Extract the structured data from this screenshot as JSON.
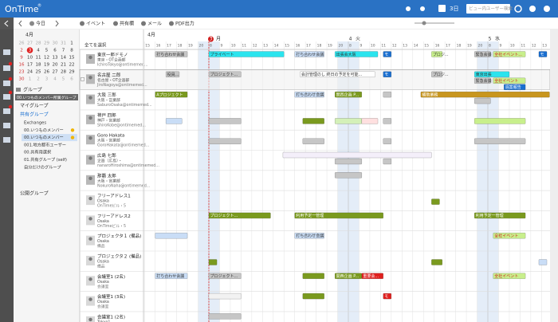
{
  "header": {
    "logo": "OnTime",
    "registered": "®",
    "range": "3日",
    "search_placeholder": "ビュー内ユーザー検索"
  },
  "toolbar": {
    "today": "今日",
    "buttons": [
      "イベント",
      "共有欄",
      "メール",
      "PDF出力"
    ]
  },
  "mini_calendar": {
    "month": "4月",
    "today": 3,
    "weeks": [
      [
        26,
        27,
        28,
        29,
        30,
        31,
        1
      ],
      [
        2,
        3,
        4,
        5,
        6,
        7,
        8
      ],
      [
        9,
        10,
        11,
        12,
        13,
        14,
        15
      ],
      [
        16,
        17,
        18,
        19,
        20,
        21,
        22
      ],
      [
        23,
        24,
        25,
        26,
        27,
        28,
        29
      ],
      [
        30,
        1,
        2,
        3,
        4,
        5,
        6
      ]
    ]
  },
  "groups": {
    "title": "グループ",
    "current": "00.いつものメンバー所属グループ",
    "my": "マイグループ",
    "shared": "共有グループ",
    "shared_items": [
      "Exchanges",
      "00.いつものメンバー",
      "00.いつものメンバー",
      "001.地方都市ユーザー",
      "00.共有用選択",
      "01.共有グループ (self)",
      "自分だけのグループ"
    ],
    "selected": 2,
    "public": "公開グループ"
  },
  "timeline": {
    "month": "4月",
    "days": [
      {
        "date": "3",
        "weekday": "月"
      },
      {
        "date": "4",
        "weekday": "火"
      },
      {
        "date": "5",
        "weekday": "水"
      }
    ],
    "hour_labels": [
      8,
      9,
      10,
      11,
      12,
      13,
      14,
      15,
      16,
      17,
      18,
      19,
      20
    ],
    "now": 8
  },
  "users": {
    "select_all": "全てを選択",
    "selected": 1,
    "rows": [
      {
        "name": "東京一郎ドモノ",
        "line1": "東京・OT企画部",
        "line2": "IchiroTokyo@ontimemed..."
      },
      {
        "name": "名古屋 二郎",
        "line1": "名古屋・OT企画部",
        "line2": "JiroNagoya@ontimemed..."
      },
      {
        "name": "大阪 三郎",
        "line1": "大阪・営業部",
        "line2": "SaburoOsaka@ontimemed..."
      },
      {
        "name": "神戸 四郎",
        "line1": "神戸・営業部",
        "line2": "ShiroKobe@ontimemed..."
      },
      {
        "name": "Goro Hakata",
        "line1": "大阪・営業部",
        "line2": "GoroHakata@ontimemed..."
      },
      {
        "name": "広島 七郎",
        "line1": "企画（広島）・",
        "line2": "nanaroHiroshima@ontimemed..."
      },
      {
        "name": "那覇 太郎",
        "line1": "大阪・営業部",
        "line2": "NokuroNaha@ontimemed..."
      },
      {
        "name": "フリーアドレス1",
        "line1": "Osaka",
        "line2": "OnTimeビル・5"
      },
      {
        "name": "フリーアドレス2",
        "line1": "Osaka",
        "line2": "OnTimeビル・5"
      },
      {
        "name": "プロジェクタ１ (備品)",
        "line1": "Osaka",
        "line2": "備品"
      },
      {
        "name": "プロジェクタ２ (備品)",
        "line1": "Osaka",
        "line2": "備品"
      },
      {
        "name": "会議室1 (2名)",
        "line1": "Osaka",
        "line2": "会議室"
      },
      {
        "name": "会議室1 (3名)",
        "line1": "Osaka",
        "line2": "会議室"
      },
      {
        "name": "会議室1 (2名)",
        "line1": "Tokyo1",
        "line2": "会議室"
      }
    ]
  },
  "events": [
    {
      "row": 0,
      "lane": 0,
      "start": -8,
      "end": -5,
      "label": "打ち合わせ会議",
      "color": "#c6c6c6"
    },
    {
      "row": 0,
      "lane": 0,
      "start": 8,
      "end": 15,
      "label": "プライベート",
      "color": "#2ae4ee"
    },
    {
      "row": 0,
      "lane": 0,
      "start": 16,
      "end": 18.75,
      "label": "打ち合わせ会議",
      "color": "#c9ddf6"
    },
    {
      "row": 0,
      "lane": 0,
      "start": 19.75,
      "end": 34.75,
      "label": "出張会大阪",
      "color": "#2ae4ee"
    },
    {
      "row": 0,
      "lane": 0,
      "start": 35.25,
      "end": 36,
      "label": "モ",
      "color": "#1a6fd0",
      "text_color": "#fff"
    },
    {
      "row": 0,
      "lane": 0,
      "start": 39.75,
      "end": 40.75,
      "label": "プロジ...",
      "color": "#c8ef8c"
    },
    {
      "row": 0,
      "lane": 0,
      "start": 43.75,
      "end": 56.25,
      "label": "緊急会議",
      "color": "#c6c6c6"
    },
    {
      "row": 0,
      "lane": 0,
      "start": 56.5,
      "end": 59.5,
      "label": "全社イベント...",
      "color": "#c8ef8c",
      "text_color": "#d02020"
    },
    {
      "row": 0,
      "lane": 0,
      "start": 60.75,
      "end": 61.5,
      "label": "モ",
      "color": "#1a6fd0",
      "text_color": "#fff"
    },
    {
      "row": 1,
      "lane": 0,
      "start": -7,
      "end": -5.75,
      "label": "役員...",
      "color": "#c6c6c6"
    },
    {
      "row": 1,
      "lane": 0,
      "start": 8,
      "end": 11,
      "label": "プロジェクト...",
      "color": "#c6c6c6"
    },
    {
      "row": 1,
      "lane": 0,
      "start": 16.5,
      "end": 34.5,
      "label": "会計管理のし 終日の予定を可能...",
      "color": "#ffffff"
    },
    {
      "row": 1,
      "lane": 0,
      "start": 35.25,
      "end": 36,
      "label": "モ",
      "color": "#1a6fd0",
      "text_color": "#fff"
    },
    {
      "row": 1,
      "lane": 0,
      "start": 39.75,
      "end": 40.75,
      "label": "プロジ...",
      "color": "#c6c6c6"
    },
    {
      "row": 1,
      "lane": 0,
      "start": 43.75,
      "end": 58,
      "label": "東京出張",
      "color": "#2ae4ee"
    },
    {
      "row": 1,
      "lane": 1,
      "start": 43.75,
      "end": 56.25,
      "label": "緊急会議",
      "color": "#c6c6c6"
    },
    {
      "row": 1,
      "lane": 1,
      "start": 56.5,
      "end": 59.5,
      "label": "全社イベント",
      "color": "#c8ef8c",
      "text_color": "#d02020"
    },
    {
      "row": 1,
      "lane": 2,
      "start": 57.5,
      "end": 59.5,
      "label": "週案報告",
      "color": "#1a6fd0",
      "text_color": "#fff"
    },
    {
      "row": 2,
      "lane": 0,
      "start": -8,
      "end": -5,
      "label": "Aプロジェクト",
      "color": "#7a9a1e",
      "text_color": "#fff"
    },
    {
      "row": 2,
      "lane": 0,
      "start": 16,
      "end": 18.75,
      "label": "打ち合わせ会議",
      "color": "#c9ddf6"
    },
    {
      "row": 2,
      "lane": 0,
      "start": 19.75,
      "end": 33.25,
      "label": "関西企画 P...",
      "color": "#7a9a1e",
      "text_color": "#fff"
    },
    {
      "row": 2,
      "lane": 0,
      "start": 35.25,
      "end": 36,
      "color": "#c6c6c6"
    },
    {
      "row": 2,
      "lane": 0,
      "start": 38.75,
      "end": 61.75,
      "label": "補助業務",
      "color": "#c8961e",
      "text_color": "#fff"
    },
    {
      "row": 2,
      "lane": 1,
      "start": 43.75,
      "end": 56.25,
      "color": "#c6c6c6"
    },
    {
      "row": 3,
      "lane": 1,
      "start": -7,
      "end": -5.5,
      "color": "#c9ddf6"
    },
    {
      "row": 3,
      "lane": 1,
      "start": 8,
      "end": 11,
      "color": "#c6c6c6"
    },
    {
      "row": 3,
      "lane": 1,
      "start": 16.75,
      "end": 18.75,
      "color": "#7a9a1e"
    },
    {
      "row": 3,
      "lane": 1,
      "start": 19.75,
      "end": 33.25,
      "color": "#d4f0b8"
    },
    {
      "row": 3,
      "lane": 1,
      "start": 33.25,
      "end": 34.75,
      "color": "#ffe0e0"
    },
    {
      "row": 3,
      "lane": 1,
      "start": 35.25,
      "end": 36,
      "color": "#c6c6c6"
    },
    {
      "row": 3,
      "lane": 1,
      "start": 43.75,
      "end": 59.5,
      "color": "#c8ef8c"
    },
    {
      "row": 4,
      "lane": 1,
      "start": 8,
      "end": 11,
      "color": "#c6c6c6"
    },
    {
      "row": 4,
      "lane": 1,
      "start": 16.75,
      "end": 18.75,
      "color": "#c6c6c6"
    },
    {
      "row": 4,
      "lane": 1,
      "start": 35.25,
      "end": 36,
      "color": "#c6c6c6"
    },
    {
      "row": 4,
      "lane": 1,
      "start": 43.75,
      "end": 59.5,
      "color": "#c6c6c6"
    },
    {
      "row": 5,
      "lane": 0,
      "start": 14.9,
      "end": 39.75,
      "color": "#f4effa"
    },
    {
      "row": 5,
      "lane": 1,
      "start": 19.75,
      "end": 33.25,
      "color": "#c6c6c6"
    },
    {
      "row": 5,
      "lane": 1,
      "start": 35.25,
      "end": 36,
      "color": "#c6c6c6"
    },
    {
      "row": 6,
      "lane": 0,
      "start": 19.75,
      "end": 33.25,
      "color": "#c6c6c6"
    },
    {
      "row": 7,
      "lane": 1,
      "start": 39.75,
      "end": 40.5,
      "color": "#7a9a1e"
    },
    {
      "row": 8,
      "lane": 0,
      "start": 8,
      "end": 13.75,
      "label": "プロジェクト...",
      "color": "#7a9a1e",
      "text_color": "#fff"
    },
    {
      "row": 8,
      "lane": 0,
      "start": 16,
      "end": 35.25,
      "label": "利用予定一管理",
      "color": "#7a9a1e",
      "text_color": "#fff"
    },
    {
      "row": 8,
      "lane": 0,
      "start": 43.75,
      "end": 59.5,
      "label": "利用予定一管理",
      "color": "#7a9a1e",
      "text_color": "#fff"
    },
    {
      "row": 9,
      "lane": 0,
      "start": -8,
      "end": -5,
      "color": "#c9ddf6"
    },
    {
      "row": 9,
      "lane": 0,
      "start": 16,
      "end": 18.75,
      "label": "打ち合わせ会議",
      "color": "#c9ddf6"
    },
    {
      "row": 9,
      "lane": 0,
      "start": 56.5,
      "end": 59.5,
      "label": "全社イベント",
      "color": "#c8ef8c",
      "text_color": "#d02020"
    },
    {
      "row": 10,
      "lane": 1,
      "start": 8,
      "end": 8.75,
      "color": "#7a9a1e"
    },
    {
      "row": 10,
      "lane": 1,
      "start": 39.75,
      "end": 40.75,
      "color": "#7a9a1e"
    },
    {
      "row": 10,
      "lane": 1,
      "start": 60.75,
      "end": 61.5,
      "color": "#c9ddf6"
    },
    {
      "row": 11,
      "lane": 0,
      "start": -8,
      "end": -5,
      "label": "打ち合わせ会議",
      "color": "#c9ddf6"
    },
    {
      "row": 11,
      "lane": 0,
      "start": 8,
      "end": 11,
      "label": "プロジェクト...",
      "color": "#c6c6c6"
    },
    {
      "row": 11,
      "lane": 0,
      "start": 16.75,
      "end": 18.75,
      "color": "#7a9a1e"
    },
    {
      "row": 11,
      "lane": 0,
      "start": 19.75,
      "end": 33.25,
      "label": "関西企画 P...",
      "color": "#7a9a1e",
      "text_color": "#fff"
    },
    {
      "row": 11,
      "lane": 0,
      "start": 33.25,
      "end": 35.25,
      "label": "重要会...",
      "color": "#e0201e",
      "text_color": "#fff"
    },
    {
      "row": 11,
      "lane": 0,
      "start": 56.5,
      "end": 59.5,
      "label": "全社イベント",
      "color": "#c8ef8c",
      "text_color": "#d02020"
    },
    {
      "row": 12,
      "lane": 0,
      "start": 8,
      "end": 11,
      "color": "#f2f2f2"
    },
    {
      "row": 12,
      "lane": 0,
      "start": 16.75,
      "end": 18.75,
      "color": "#7a9a1e"
    },
    {
      "row": 12,
      "lane": 0,
      "start": 35.25,
      "end": 36,
      "label": "モ",
      "color": "#e0201e",
      "text_color": "#fff"
    },
    {
      "row": 13,
      "lane": 0,
      "start": 8,
      "end": 11,
      "color": "#c6c6c6"
    }
  ]
}
